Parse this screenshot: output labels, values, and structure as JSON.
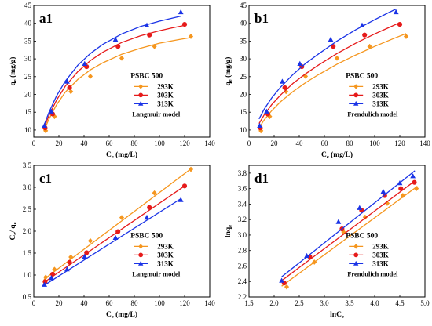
{
  "chart_data": [
    {
      "type": "scatter",
      "panel_label": "a1",
      "model_label": "Langmuir model",
      "legend_title": "PSBC 500",
      "xlabel": {
        "main": "C",
        "sub": "e",
        "rest": " (mg/L)"
      },
      "ylabel": {
        "main": "q",
        "sub": "e",
        "rest": " (mg/g)"
      },
      "xlim": [
        0,
        140
      ],
      "ylim": [
        8,
        45
      ],
      "xticks": [
        "0",
        "20",
        "40",
        "60",
        "80",
        "100",
        "120",
        "140"
      ],
      "yticks": [
        "10",
        "15",
        "20",
        "25",
        "30",
        "35",
        "40",
        "45"
      ],
      "series": [
        {
          "name": "293K",
          "marker": "diamond",
          "color": "#f5961e",
          "x": [
            9.5,
            16.5,
            29.5,
            45,
            70,
            96,
            125
          ],
          "y": [
            9.8,
            13.8,
            20.8,
            25.1,
            30.2,
            33.5,
            36.3
          ],
          "fit_x": [
            8,
            12,
            18,
            25,
            35,
            45,
            55,
            70,
            85,
            100,
            115,
            125
          ],
          "fit_y": [
            9.7,
            13.0,
            17.0,
            20.6,
            24.2,
            26.9,
            28.9,
            31.3,
            33.0,
            34.4,
            35.4,
            36.0
          ]
        },
        {
          "name": "303K",
          "marker": "circle",
          "color": "#e61a1a",
          "x": [
            9,
            15,
            28.5,
            42,
            67,
            92,
            120
          ],
          "y": [
            10.6,
            14.5,
            21.9,
            27.8,
            33.5,
            36.7,
            39.7
          ],
          "fit_x": [
            8,
            12,
            18,
            25,
            35,
            45,
            55,
            70,
            85,
            100,
            110,
            120
          ],
          "fit_y": [
            10.5,
            14.0,
            18.3,
            22.3,
            26.4,
            29.5,
            31.9,
            34.6,
            36.5,
            37.9,
            38.7,
            39.4
          ]
        },
        {
          "name": "313K",
          "marker": "triangle",
          "color": "#1a33e6",
          "x": [
            8.5,
            14,
            26.5,
            40.5,
            65,
            90,
            117
          ],
          "y": [
            11.2,
            15.2,
            23.6,
            28.6,
            35.4,
            39.4,
            43.1
          ],
          "fit_x": [
            8,
            12,
            18,
            25,
            35,
            45,
            55,
            70,
            85,
            100,
            110,
            117
          ],
          "fit_y": [
            11.2,
            14.9,
            19.5,
            23.7,
            28.2,
            31.5,
            34.1,
            37.0,
            39.1,
            40.6,
            41.4,
            42.0
          ]
        }
      ]
    },
    {
      "type": "scatter",
      "panel_label": "b1",
      "model_label": "Frendulich model",
      "legend_title": "PSBC 500",
      "xlabel": {
        "main": "C",
        "sub": "e",
        "rest": " (mg/L)"
      },
      "ylabel": {
        "main": "q",
        "sub": "e",
        "rest": " (mg/g)"
      },
      "xlim": [
        0,
        140
      ],
      "ylim": [
        8,
        45
      ],
      "xticks": [
        "0",
        "20",
        "40",
        "60",
        "80",
        "100",
        "120",
        "140"
      ],
      "yticks": [
        "10",
        "15",
        "20",
        "25",
        "30",
        "35",
        "40",
        "45"
      ],
      "series": [
        {
          "name": "293K",
          "marker": "diamond",
          "color": "#f5961e",
          "x": [
            9.5,
            16.5,
            29.5,
            45,
            70,
            96,
            125
          ],
          "y": [
            9.8,
            13.8,
            20.8,
            25.1,
            30.2,
            33.5,
            36.3
          ],
          "fit_x": [
            8,
            12,
            18,
            25,
            35,
            45,
            55,
            70,
            85,
            100,
            115,
            125
          ],
          "fit_y": [
            10.6,
            12.8,
            15.4,
            17.9,
            20.8,
            23.3,
            25.5,
            28.5,
            31.1,
            33.5,
            35.7,
            37.1
          ]
        },
        {
          "name": "303K",
          "marker": "circle",
          "color": "#e61a1a",
          "x": [
            9,
            15,
            28.5,
            42,
            67,
            92,
            120
          ],
          "y": [
            10.6,
            14.5,
            21.9,
            27.8,
            33.5,
            36.7,
            39.7
          ],
          "fit_x": [
            8,
            12,
            18,
            25,
            35,
            45,
            55,
            70,
            85,
            100,
            110,
            120
          ],
          "fit_y": [
            11.8,
            14.2,
            17.1,
            19.8,
            23.1,
            25.8,
            28.2,
            31.5,
            34.4,
            37.0,
            38.6,
            40.2
          ]
        },
        {
          "name": "313K",
          "marker": "triangle",
          "color": "#1a33e6",
          "x": [
            8.5,
            14,
            26.5,
            40.5,
            65,
            90,
            117
          ],
          "y": [
            11.2,
            15.2,
            23.6,
            28.6,
            35.4,
            39.4,
            43.1
          ],
          "fit_x": [
            8,
            12,
            18,
            25,
            35,
            45,
            55,
            70,
            85,
            100,
            110,
            117
          ],
          "fit_y": [
            13.1,
            15.8,
            19.0,
            22.0,
            25.6,
            28.7,
            31.3,
            35.0,
            38.2,
            41.0,
            42.8,
            44.0
          ]
        }
      ]
    },
    {
      "type": "scatter",
      "panel_label": "c1",
      "model_label": "Langmuir model",
      "legend_title": "PSBC 500",
      "xlabel": {
        "main": "C",
        "sub": "e",
        "rest": " (mg/L)"
      },
      "ylabel": {
        "main": "C",
        "sub": "e",
        "rest": "/ q",
        "sub2": "e"
      },
      "xlim": [
        0,
        140
      ],
      "ylim": [
        0.5,
        3.5
      ],
      "xticks": [
        "0",
        "20",
        "40",
        "60",
        "80",
        "100",
        "120",
        "140"
      ],
      "yticks": [
        "0.5",
        "1.0",
        "1.5",
        "2.0",
        "2.5",
        "3.0",
        "3.5"
      ],
      "series": [
        {
          "name": "293K",
          "marker": "diamond",
          "color": "#f5961e",
          "x": [
            9.5,
            16.5,
            29.5,
            45,
            70,
            96,
            125
          ],
          "y": [
            0.95,
            1.13,
            1.41,
            1.78,
            2.31,
            2.87,
            3.41
          ],
          "fit_x": [
            8,
            125
          ],
          "fit_y": [
            0.9,
            3.42
          ]
        },
        {
          "name": "303K",
          "marker": "circle",
          "color": "#e61a1a",
          "x": [
            9,
            15,
            28.5,
            42,
            67,
            92,
            120
          ],
          "y": [
            0.85,
            1.02,
            1.29,
            1.51,
            1.99,
            2.54,
            3.03
          ],
          "fit_x": [
            8,
            120
          ],
          "fit_y": [
            0.83,
            3.03
          ]
        },
        {
          "name": "313K",
          "marker": "triangle",
          "color": "#1a33e6",
          "x": [
            8.5,
            14,
            26.5,
            40.5,
            65,
            90,
            117
          ],
          "y": [
            0.78,
            0.93,
            1.13,
            1.42,
            1.85,
            2.31,
            2.71
          ],
          "fit_x": [
            8,
            117
          ],
          "fit_y": [
            0.76,
            2.74
          ]
        }
      ]
    },
    {
      "type": "scatter",
      "panel_label": "d1",
      "model_label": "Frendulich model",
      "legend_title": "PSBC 500",
      "xlabel": {
        "main": "lnC",
        "sub": "e",
        "rest": ""
      },
      "ylabel": {
        "main": "lnq",
        "sub": "e",
        "rest": ""
      },
      "xlim": [
        1.5,
        5.0
      ],
      "ylim": [
        2.2,
        3.9
      ],
      "xticks": [
        "1.5",
        "2.0",
        "2.5",
        "3.0",
        "3.5",
        "4.0",
        "4.5",
        "5.0"
      ],
      "yticks": [
        "2.2",
        "2.4",
        "2.6",
        "2.8",
        "3.0",
        "3.2",
        "3.4",
        "3.6",
        "3.8"
      ],
      "series": [
        {
          "name": "293K",
          "marker": "diamond",
          "color": "#f5961e",
          "x": [
            2.25,
            2.8,
            3.38,
            3.81,
            4.25,
            4.56,
            4.83
          ],
          "y": [
            2.33,
            2.65,
            3.04,
            3.23,
            3.41,
            3.51,
            3.6
          ],
          "fit_x": [
            2.15,
            4.85
          ],
          "fit_y": [
            2.34,
            3.63
          ]
        },
        {
          "name": "303K",
          "marker": "circle",
          "color": "#e61a1a",
          "x": [
            2.2,
            2.71,
            3.35,
            3.74,
            4.2,
            4.52,
            4.79
          ],
          "y": [
            2.38,
            2.72,
            3.08,
            3.32,
            3.51,
            3.6,
            3.68
          ],
          "fit_x": [
            2.15,
            4.8
          ],
          "fit_y": [
            2.41,
            3.7
          ]
        },
        {
          "name": "313K",
          "marker": "triangle",
          "color": "#1a33e6",
          "x": [
            2.15,
            2.65,
            3.28,
            3.7,
            4.17,
            4.5,
            4.76
          ],
          "y": [
            2.41,
            2.73,
            3.17,
            3.35,
            3.56,
            3.67,
            3.76
          ],
          "fit_x": [
            2.15,
            4.8
          ],
          "fit_y": [
            2.46,
            3.83
          ]
        }
      ]
    }
  ]
}
